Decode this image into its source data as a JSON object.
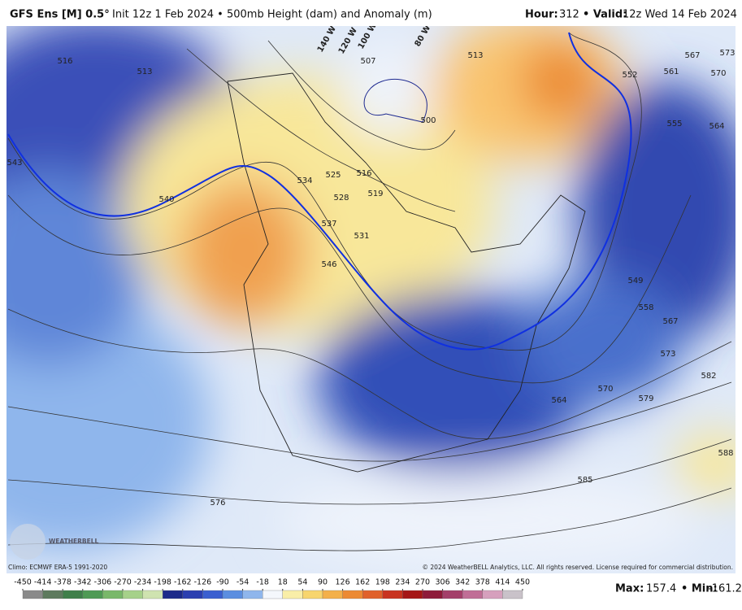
{
  "header": {
    "model": "GFS Ens [M] 0.5°",
    "init": "Init 12z 1 Feb 2024 • 500mb Height (dam) and Anomaly (m)",
    "hour_label": "Hour:",
    "hour": "312",
    "valid_label": "• Valid:",
    "valid": "12z Wed 14 Feb 2024"
  },
  "map": {
    "contour_labels": [
      516,
      513,
      543,
      540,
      534,
      525,
      528,
      516,
      519,
      537,
      531,
      546,
      513,
      552,
      561,
      567,
      570,
      573,
      555,
      564,
      549,
      558,
      567,
      573,
      582,
      579,
      570,
      564,
      576,
      585,
      588,
      507,
      500
    ],
    "longitude_labels": [
      "140 W",
      "120 W",
      "100 W",
      "80 W"
    ],
    "logo": "WEATHERBELL"
  },
  "footer": {
    "climo": "Climo: ECMWF ERA-5 1991-2020",
    "copyright": "© 2024 WeatherBELL Analytics, LLC. All rights reserved. License required for commercial distribution.",
    "colorbar_ticks": [
      -450,
      -414,
      -378,
      -342,
      -306,
      -270,
      -234,
      -198,
      -162,
      -126,
      -90,
      -54,
      -18,
      18,
      54,
      90,
      126,
      162,
      198,
      234,
      270,
      306,
      342,
      378,
      414,
      450
    ],
    "colorbar_colors": [
      "#8a8a8a",
      "#5e7a5e",
      "#3f7f4a",
      "#4f9a55",
      "#79b86a",
      "#a6d18a",
      "#cfe3b0",
      "#1c2a8a",
      "#2b3fb0",
      "#3a5fd0",
      "#5b8ee0",
      "#8fb6ec",
      "#f4f7fc",
      "#f9eea8",
      "#f7d56e",
      "#f3b04a",
      "#ec8a33",
      "#e0612a",
      "#c8331f",
      "#a51616",
      "#8e1b3a",
      "#a4406a",
      "#c06e96",
      "#d6a0bd",
      "#c9c2c9"
    ],
    "max_label": "Max:",
    "max": 157.4,
    "min_label": "• Min:",
    "min": -161.2
  }
}
